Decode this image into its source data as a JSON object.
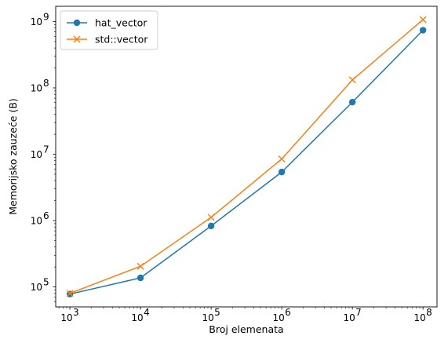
{
  "chart_data": {
    "type": "line",
    "title": "",
    "xlabel": "Broj elemenata",
    "ylabel": "Memorijsko zauzeće (B)",
    "xscale": "log",
    "yscale": "log",
    "xlim": [
      630,
      158000000
    ],
    "ylim": [
      50000,
      1700000000
    ],
    "grid": false,
    "legend_position": "top-left",
    "x": [
      1000,
      10000,
      100000,
      1000000,
      10000000,
      100000000
    ],
    "series": [
      {
        "name": "hat_vector",
        "values": [
          78000,
          137000,
          830000,
          5400000,
          61000000,
          740000000
        ],
        "color": "#1f77b4",
        "marker": "circle"
      },
      {
        "name": "std::vector",
        "values": [
          80000,
          205000,
          1120000,
          8500000,
          132000000,
          1070000000
        ],
        "color": "#ff7f0e",
        "marker": "x"
      }
    ],
    "x_ticks": [
      {
        "value": 1000,
        "base": "10",
        "exp": "3"
      },
      {
        "value": 10000,
        "base": "10",
        "exp": "4"
      },
      {
        "value": 100000,
        "base": "10",
        "exp": "5"
      },
      {
        "value": 1000000,
        "base": "10",
        "exp": "6"
      },
      {
        "value": 10000000,
        "base": "10",
        "exp": "7"
      },
      {
        "value": 100000000,
        "base": "10",
        "exp": "8"
      }
    ],
    "y_ticks": [
      {
        "value": 100000,
        "base": "10",
        "exp": "5"
      },
      {
        "value": 1000000,
        "base": "10",
        "exp": "6"
      },
      {
        "value": 10000000,
        "base": "10",
        "exp": "7"
      },
      {
        "value": 100000000,
        "base": "10",
        "exp": "8"
      },
      {
        "value": 1000000000,
        "base": "10",
        "exp": "9"
      }
    ]
  }
}
